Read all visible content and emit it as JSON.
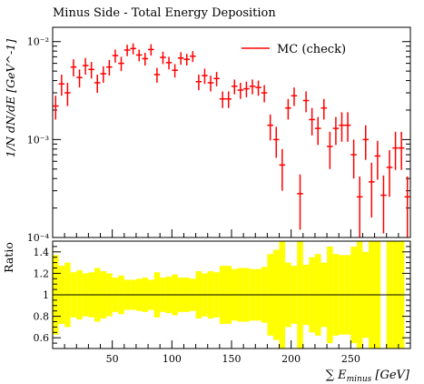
{
  "chart_data": [
    {
      "type": "scatter",
      "title": "Minus Side - Total Energy Deposition",
      "xlabel": "∑ E_minus [GeV]",
      "ylabel": "1/N dN/dE [GeV^-1]",
      "yscale": "log",
      "xlim": [
        0,
        300
      ],
      "ylim": [
        0.0001,
        0.014
      ],
      "legend_position": "top-right",
      "y_tick_labels": [
        "10⁻⁴",
        "10⁻³",
        "10⁻²"
      ],
      "series": [
        {
          "name": "MC (check)",
          "color": "#ff0000",
          "bin_width": 5,
          "x": [
            2.5,
            7.5,
            12.5,
            17.5,
            22.5,
            27.5,
            32.5,
            37.5,
            42.5,
            47.5,
            52.5,
            57.5,
            62.5,
            67.5,
            72.5,
            77.5,
            82.5,
            87.5,
            92.5,
            97.5,
            102.5,
            107.5,
            112.5,
            117.5,
            122.5,
            127.5,
            132.5,
            137.5,
            142.5,
            147.5,
            152.5,
            157.5,
            162.5,
            167.5,
            172.5,
            177.5,
            182.5,
            187.5,
            192.5,
            197.5,
            202.5,
            207.5,
            212.5,
            217.5,
            222.5,
            227.5,
            232.5,
            237.5,
            242.5,
            247.5,
            252.5,
            257.5,
            262.5,
            267.5,
            272.5,
            277.5,
            282.5,
            287.5,
            292.5,
            297.5
          ],
          "y": [
            0.0022,
            0.0037,
            0.003,
            0.0055,
            0.0043,
            0.0057,
            0.0052,
            0.0038,
            0.0047,
            0.0055,
            0.0072,
            0.006,
            0.0082,
            0.0085,
            0.0073,
            0.0067,
            0.0083,
            0.0046,
            0.0069,
            0.0061,
            0.0051,
            0.0068,
            0.0066,
            0.0071,
            0.0039,
            0.0045,
            0.0038,
            0.0042,
            0.0026,
            0.0026,
            0.0035,
            0.0032,
            0.0033,
            0.0035,
            0.0034,
            0.003,
            0.0014,
            0.001,
            0.00055,
            0.0021,
            0.0028,
            0.00028,
            0.0025,
            0.0016,
            0.0013,
            0.0021,
            0.00085,
            0.0013,
            0.0014,
            0.0014,
            0.0007,
            0.00026,
            0.001,
            0.00037,
            0.00068,
            0.00027,
            0.00052,
            0.00082,
            0.00082,
            0.00026
          ],
          "y_low": [
            0.0016,
            0.0028,
            0.0022,
            0.0044,
            0.0034,
            0.0046,
            0.0042,
            0.003,
            0.0038,
            0.0045,
            0.0061,
            0.005,
            0.0071,
            0.0074,
            0.0063,
            0.0057,
            0.0072,
            0.0038,
            0.0059,
            0.0052,
            0.0043,
            0.0058,
            0.0057,
            0.0062,
            0.0032,
            0.0037,
            0.0031,
            0.0035,
            0.0021,
            0.0021,
            0.0029,
            0.0026,
            0.0027,
            0.0029,
            0.0028,
            0.0024,
            0.00098,
            0.00065,
            0.0003,
            0.0016,
            0.0022,
            0.00012,
            0.0019,
            0.0011,
            0.00088,
            0.0016,
            0.0005,
            0.00088,
            0.00095,
            0.00095,
            0.0004,
            0.0001,
            0.00062,
            0.00016,
            0.00039,
            0.00011,
            0.00026,
            0.00049,
            0.00049,
            0.0001
          ],
          "y_high": [
            0.0028,
            0.0046,
            0.0038,
            0.0066,
            0.0052,
            0.0068,
            0.0062,
            0.0046,
            0.0056,
            0.0065,
            0.0083,
            0.007,
            0.0093,
            0.0096,
            0.0083,
            0.0077,
            0.0094,
            0.0054,
            0.0079,
            0.007,
            0.0059,
            0.0078,
            0.0075,
            0.008,
            0.0046,
            0.0053,
            0.0045,
            0.0049,
            0.0031,
            0.0031,
            0.0041,
            0.0038,
            0.0039,
            0.0041,
            0.004,
            0.0036,
            0.0018,
            0.00135,
            0.0008,
            0.0026,
            0.0034,
            0.00044,
            0.0031,
            0.0021,
            0.0017,
            0.0026,
            0.0012,
            0.0017,
            0.0019,
            0.0019,
            0.001,
            0.00042,
            0.0014,
            0.00058,
            0.00097,
            0.00043,
            0.00078,
            0.0012,
            0.0012,
            0.00042
          ]
        }
      ]
    },
    {
      "type": "bar",
      "ylabel": "Ratio",
      "xlabel": "∑ E_minus [GeV]",
      "xlim": [
        0,
        300
      ],
      "ylim": [
        0.5,
        1.5
      ],
      "x_tick_labels": [
        "50",
        "100",
        "150",
        "200",
        "250"
      ],
      "y_tick_labels": [
        "0.6",
        "0.8",
        "1",
        "1.2",
        "1.4"
      ],
      "reference_line": 1,
      "band_color": "#ffff00",
      "bin_width": 5,
      "x": [
        2.5,
        7.5,
        12.5,
        17.5,
        22.5,
        27.5,
        32.5,
        37.5,
        42.5,
        47.5,
        52.5,
        57.5,
        62.5,
        67.5,
        72.5,
        77.5,
        82.5,
        87.5,
        92.5,
        97.5,
        102.5,
        107.5,
        112.5,
        117.5,
        122.5,
        127.5,
        132.5,
        137.5,
        142.5,
        147.5,
        152.5,
        157.5,
        162.5,
        167.5,
        172.5,
        177.5,
        182.5,
        187.5,
        192.5,
        197.5,
        202.5,
        207.5,
        212.5,
        217.5,
        222.5,
        227.5,
        232.5,
        237.5,
        242.5,
        247.5,
        252.5,
        257.5,
        262.5,
        267.5,
        272.5,
        277.5,
        282.5,
        287.5,
        292.5,
        297.5
      ],
      "band_half": [
        0.37,
        0.27,
        0.3,
        0.21,
        0.23,
        0.2,
        0.21,
        0.25,
        0.22,
        0.2,
        0.16,
        0.18,
        0.14,
        0.14,
        0.15,
        0.16,
        0.14,
        0.21,
        0.16,
        0.17,
        0.19,
        0.16,
        0.16,
        0.15,
        0.22,
        0.2,
        0.22,
        0.21,
        0.27,
        0.27,
        0.24,
        0.25,
        0.25,
        0.24,
        0.24,
        0.26,
        0.38,
        0.42,
        0.5,
        0.3,
        0.27,
        0.5,
        0.28,
        0.35,
        0.38,
        0.3,
        0.45,
        0.38,
        0.37,
        0.37,
        0.45,
        0.5,
        0.4,
        0.5,
        0.5,
        0.0,
        0.5,
        0.5,
        0.5,
        0.0
      ]
    }
  ]
}
